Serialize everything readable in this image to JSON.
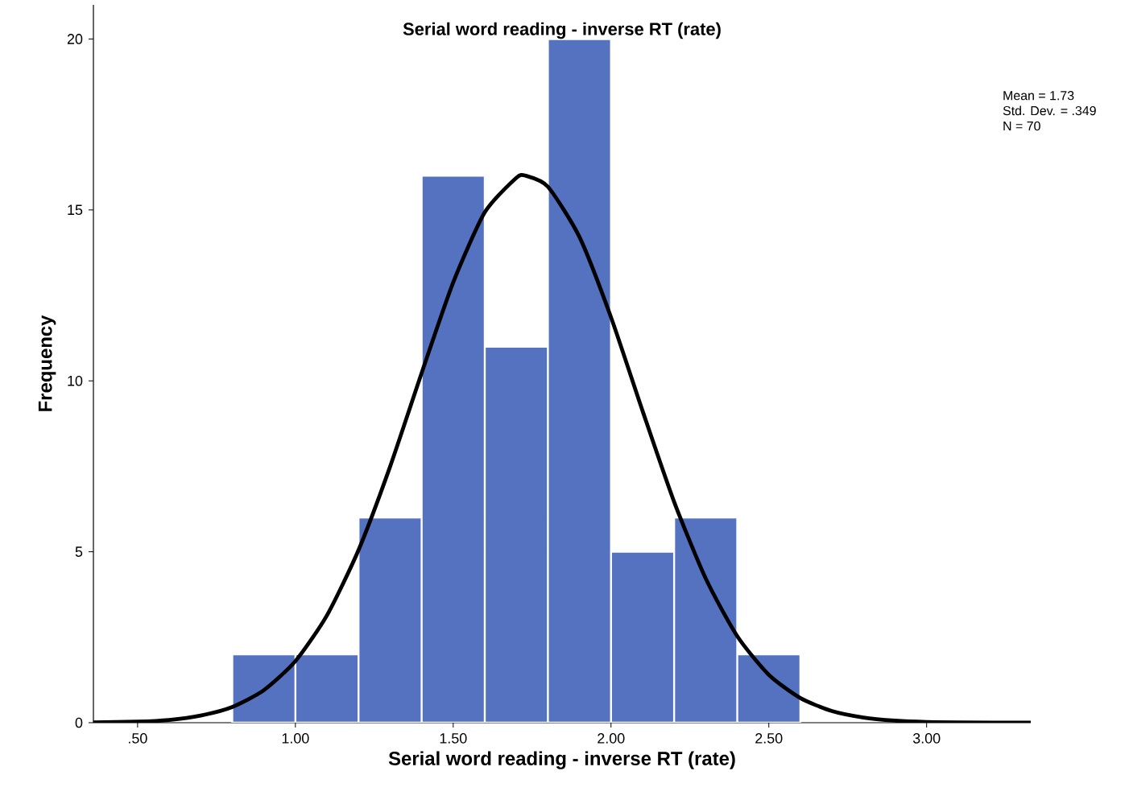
{
  "chart_data": {
    "type": "histogram",
    "title": "Serial word reading - inverse RT (rate)",
    "xlabel": "Serial word reading - inverse RT (rate)",
    "ylabel": "Frequency",
    "series": [
      {
        "color": "#5572c0",
        "bins": [
          0.8,
          1.0,
          1.2,
          1.4,
          1.6,
          1.8,
          2.0,
          2.2,
          2.4,
          2.6
        ],
        "values": [
          2,
          2,
          6,
          16,
          11,
          20,
          5,
          6,
          2
        ]
      },
      {
        "type": "line",
        "color": "#000000",
        "x": [
          0.36,
          0.5,
          0.6,
          0.7,
          0.8,
          0.9,
          1.0,
          1.1,
          1.2,
          1.3,
          1.4,
          1.5,
          1.6,
          1.7,
          1.73,
          1.8,
          1.9,
          2.0,
          2.1,
          2.2,
          2.3,
          2.4,
          2.5,
          2.6,
          2.7,
          2.8,
          2.9,
          3.0,
          3.1,
          3.33
        ],
        "values": [
          0.01,
          0.03,
          0.08,
          0.21,
          0.46,
          0.95,
          1.8,
          3.14,
          5.05,
          7.49,
          10.23,
          12.88,
          14.93,
          15.94,
          16.0,
          15.68,
          14.21,
          11.86,
          9.12,
          6.46,
          4.22,
          2.53,
          1.4,
          0.72,
          0.34,
          0.15,
          0.06,
          0.02,
          0.01,
          0.0
        ]
      }
    ],
    "xlim": [
      0.36,
      3.33
    ],
    "ylim": [
      0,
      21
    ],
    "xticks": [
      {
        "value": 0.5,
        "label": ".50"
      },
      {
        "value": 1.0,
        "label": "1.00"
      },
      {
        "value": 1.5,
        "label": "1.50"
      },
      {
        "value": 2.0,
        "label": "2.00"
      },
      {
        "value": 2.5,
        "label": "2.50"
      },
      {
        "value": 3.0,
        "label": "3.00"
      }
    ],
    "yticks": [
      0,
      5,
      10,
      15,
      20
    ],
    "grid": false,
    "annotations": [
      "Mean = 1.73",
      "Std. Dev. = .349",
      "N = 70"
    ]
  }
}
